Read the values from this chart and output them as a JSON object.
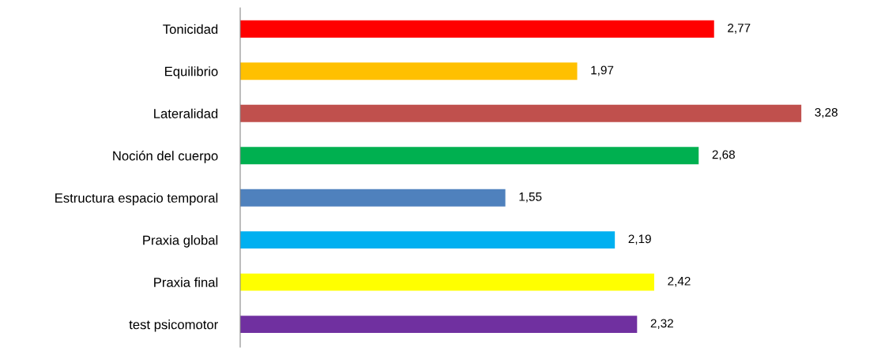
{
  "chart_data": {
    "type": "bar",
    "orientation": "horizontal",
    "data_labels": true,
    "grid": false,
    "legend": false,
    "categories": [
      "Tonicidad",
      "Equilibrio",
      "Lateralidad",
      "Noción del cuerpo",
      "Estructura espacio temporal",
      "Praxia global",
      "Praxia final",
      "test psicomotor"
    ],
    "values": [
      2.77,
      1.97,
      3.28,
      2.68,
      1.55,
      2.19,
      2.42,
      2.32
    ],
    "value_labels": [
      "2,77",
      "1,97",
      "3,28",
      "2,68",
      "1,55",
      "2,19",
      "2,42",
      "2,32"
    ],
    "colors": [
      "#ff0000",
      "#ffc000",
      "#c0504d",
      "#00b050",
      "#4f81bd",
      "#00b0f0",
      "#ffff00",
      "#7030a0"
    ]
  }
}
